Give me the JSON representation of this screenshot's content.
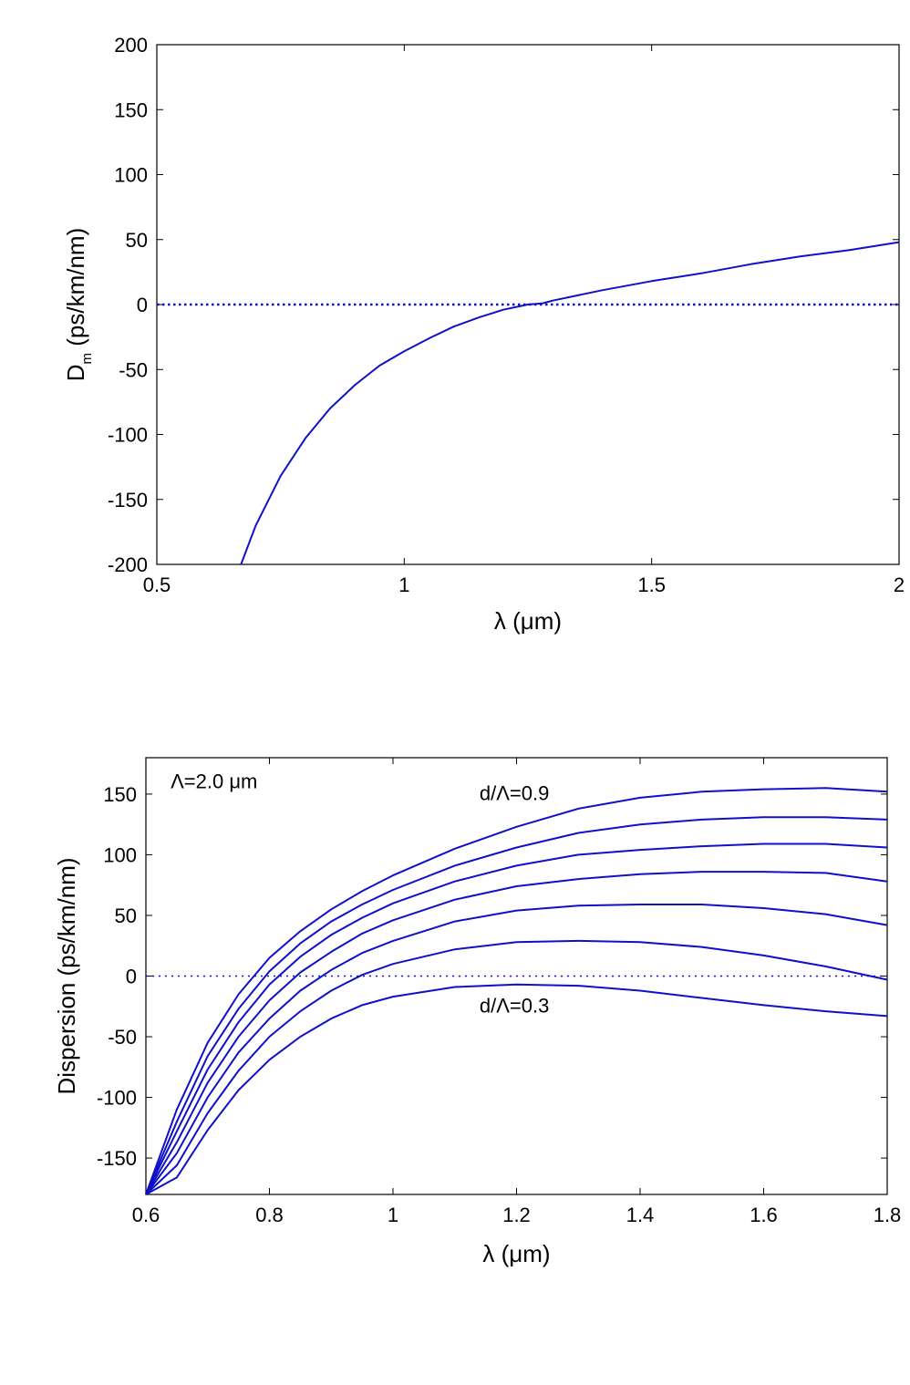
{
  "chart_data": [
    {
      "type": "line",
      "xlabel": "λ (μm)",
      "ylabel_main": "D",
      "ylabel_sub": "m",
      "ylabel_rest": " (ps/km/nm)",
      "xlim": [
        0.5,
        2.0
      ],
      "ylim": [
        -200,
        200
      ],
      "xticks": [
        0.5,
        1.0,
        1.5,
        2.0
      ],
      "xtick_labels": [
        "0.5",
        "1",
        "1.5",
        "2"
      ],
      "yticks": [
        200,
        150,
        100,
        50,
        0,
        -50,
        -100,
        -150,
        -200
      ],
      "ytick_labels": [
        "200",
        "150",
        "100",
        "50",
        "0",
        "-50",
        "-100",
        "-150",
        "-200"
      ],
      "grid": false,
      "color": "#1010c8",
      "zero_line": "dotted",
      "series": [
        {
          "x": [
            0.67,
            0.7,
            0.75,
            0.8,
            0.85,
            0.9,
            0.95,
            1.0,
            1.05,
            1.1,
            1.15,
            1.2,
            1.25,
            1.28,
            1.3,
            1.35,
            1.4,
            1.5,
            1.6,
            1.7,
            1.8,
            1.9,
            2.0
          ],
          "y": [
            -200,
            -170,
            -132,
            -103,
            -80,
            -62,
            -47,
            -36,
            -26,
            -17,
            -10,
            -4,
            0,
            1,
            3,
            7,
            11,
            18,
            24,
            31,
            37,
            42,
            48
          ]
        }
      ]
    },
    {
      "type": "line",
      "xlabel": "λ (μm)",
      "ylabel": "Dispersion (ps/km/nm)",
      "xlim": [
        0.6,
        1.8
      ],
      "ylim": [
        -180,
        180
      ],
      "xticks": [
        0.6,
        0.8,
        1.0,
        1.2,
        1.4,
        1.6,
        1.8
      ],
      "xtick_labels": [
        "0.6",
        "0.8",
        "1",
        "1.2",
        "1.4",
        "1.6",
        "1.8"
      ],
      "yticks": [
        150,
        100,
        50,
        0,
        -50,
        -100,
        -150
      ],
      "ytick_labels": [
        "150",
        "100",
        "50",
        "0",
        "-50",
        "-100",
        "-150"
      ],
      "grid": false,
      "color": "#1010c8",
      "zero_line": "dotted",
      "annotations": [
        {
          "text": "Λ=2.0 μm",
          "x": 0.64,
          "y": 155
        },
        {
          "text": "d/Λ=0.9",
          "x": 1.14,
          "y": 145
        },
        {
          "text": "d/Λ=0.3",
          "x": 1.14,
          "y": -30
        }
      ],
      "x": [
        0.6,
        0.65,
        0.7,
        0.75,
        0.8,
        0.85,
        0.9,
        0.95,
        1.0,
        1.1,
        1.2,
        1.3,
        1.4,
        1.5,
        1.6,
        1.7,
        1.8
      ],
      "series": [
        {
          "y": [
            -180,
            -110,
            -55,
            -15,
            15,
            37,
            55,
            70,
            83,
            105,
            123,
            138,
            147,
            152,
            154,
            155,
            152
          ]
        },
        {
          "y": [
            -180,
            -120,
            -66,
            -27,
            4,
            27,
            45,
            59,
            71,
            91,
            106,
            118,
            125,
            129,
            131,
            131,
            129
          ]
        },
        {
          "y": [
            -180,
            -128,
            -77,
            -38,
            -7,
            16,
            34,
            48,
            60,
            78,
            91,
            100,
            104,
            107,
            109,
            109,
            106
          ]
        },
        {
          "y": [
            -180,
            -137,
            -88,
            -50,
            -20,
            3,
            20,
            35,
            46,
            63,
            74,
            80,
            84,
            86,
            86,
            85,
            78
          ]
        },
        {
          "y": [
            -180,
            -146,
            -100,
            -63,
            -35,
            -12,
            5,
            19,
            29,
            45,
            54,
            58,
            59,
            59,
            56,
            51,
            42
          ]
        },
        {
          "y": [
            -180,
            -156,
            -113,
            -78,
            -50,
            -29,
            -12,
            1,
            10,
            22,
            28,
            29,
            28,
            24,
            17,
            8,
            -3
          ]
        },
        {
          "y": [
            -180,
            -166,
            -127,
            -94,
            -69,
            -50,
            -35,
            -24,
            -17,
            -9,
            -7,
            -8,
            -12,
            -18,
            -24,
            -29,
            -33
          ]
        }
      ]
    }
  ]
}
